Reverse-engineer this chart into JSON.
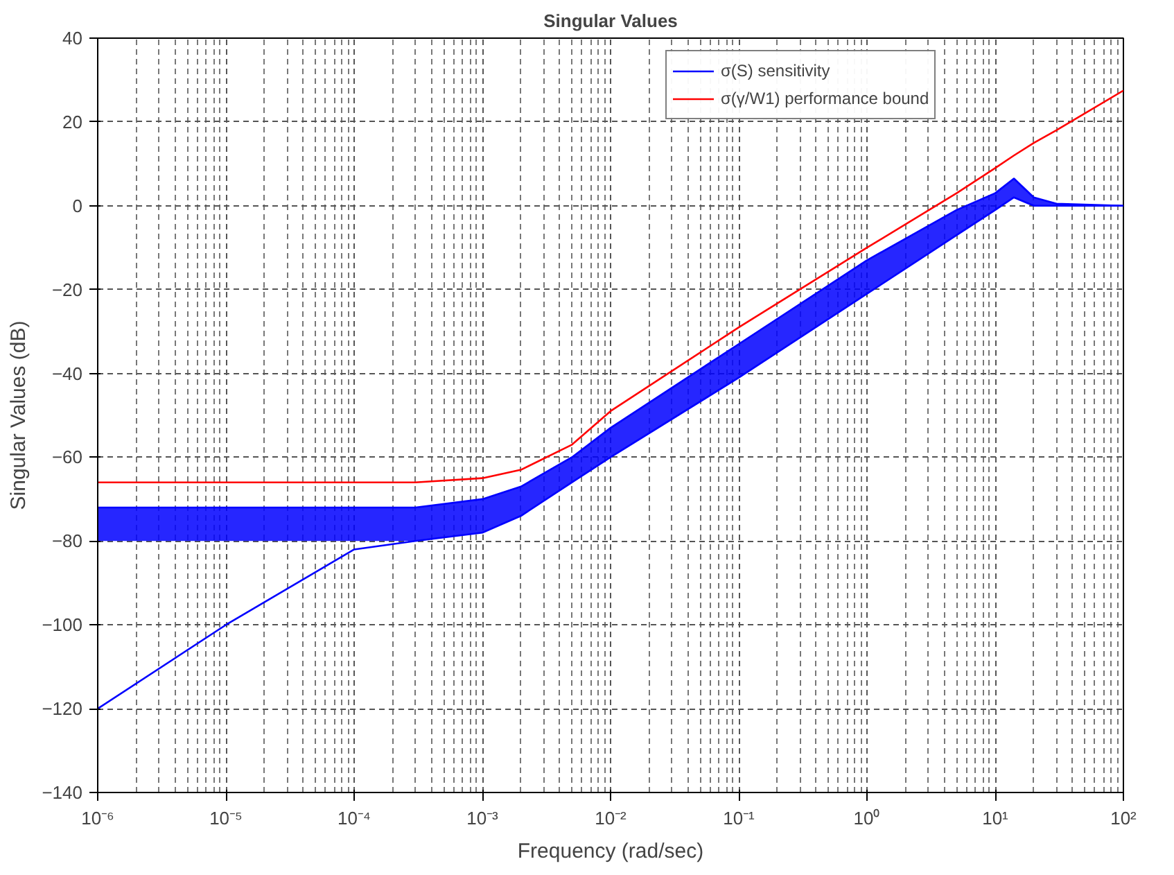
{
  "chart_data": {
    "type": "line",
    "title": "Singular Values",
    "xlabel": "Frequency (rad/sec)",
    "ylabel": "Singular Values (dB)",
    "log": "x",
    "xlim": [
      1e-06,
      100
    ],
    "ylim": [
      -140,
      40
    ],
    "xticks": [
      {
        "value": 1e-06,
        "label": "10⁻⁶"
      },
      {
        "value": 1e-05,
        "label": "10⁻⁵"
      },
      {
        "value": 0.0001,
        "label": "10⁻⁴"
      },
      {
        "value": 0.001,
        "label": "10⁻³"
      },
      {
        "value": 0.01,
        "label": "10⁻²"
      },
      {
        "value": 0.1,
        "label": "10⁻¹"
      },
      {
        "value": 1,
        "label": "10⁰"
      },
      {
        "value": 10,
        "label": "10¹"
      },
      {
        "value": 100,
        "label": "10²"
      }
    ],
    "yticks": [
      -140,
      -120,
      -100,
      -80,
      -60,
      -40,
      -20,
      0,
      20,
      40
    ],
    "grid": true,
    "legend": "top right",
    "line_style": "solid",
    "marker": "none",
    "x": [
      1e-06,
      1e-05,
      0.0001,
      0.0003,
      0.001,
      0.002,
      0.005,
      0.01,
      0.1,
      1,
      5,
      10,
      14,
      20,
      30,
      100
    ],
    "series": [
      {
        "name": "σ(S) sensitivity",
        "color": "#0000ff",
        "values": [
          -72,
          -72,
          -72,
          -72,
          -70,
          -67,
          -60,
          -53,
          -33,
          -13,
          -1,
          3,
          6.5,
          2,
          0.5,
          0
        ],
        "lower": [
          -80,
          -80,
          -80,
          -80,
          -78,
          -74,
          -66,
          -60,
          -41,
          -21,
          -7,
          -1,
          2,
          0,
          0,
          0
        ],
        "upper": [
          -72,
          -72,
          -72,
          -72,
          -70,
          -67,
          -60,
          -53,
          -33,
          -13,
          -1,
          3,
          6.5,
          2,
          0.5,
          0
        ]
      },
      {
        "name": "σ(γ/W1) performance bound",
        "color": "#ff0000",
        "values": [
          -66,
          -66,
          -66,
          -66,
          -65,
          -63,
          -57,
          -49,
          -29,
          -10,
          3,
          9,
          12,
          15,
          18,
          27.5
        ]
      },
      {
        "color": "#0000ff",
        "values": [
          -120,
          -100,
          -82,
          -80,
          -78,
          -74,
          -66,
          -60,
          -41,
          -21,
          -7,
          -1,
          2,
          0,
          0,
          0
        ]
      }
    ]
  }
}
